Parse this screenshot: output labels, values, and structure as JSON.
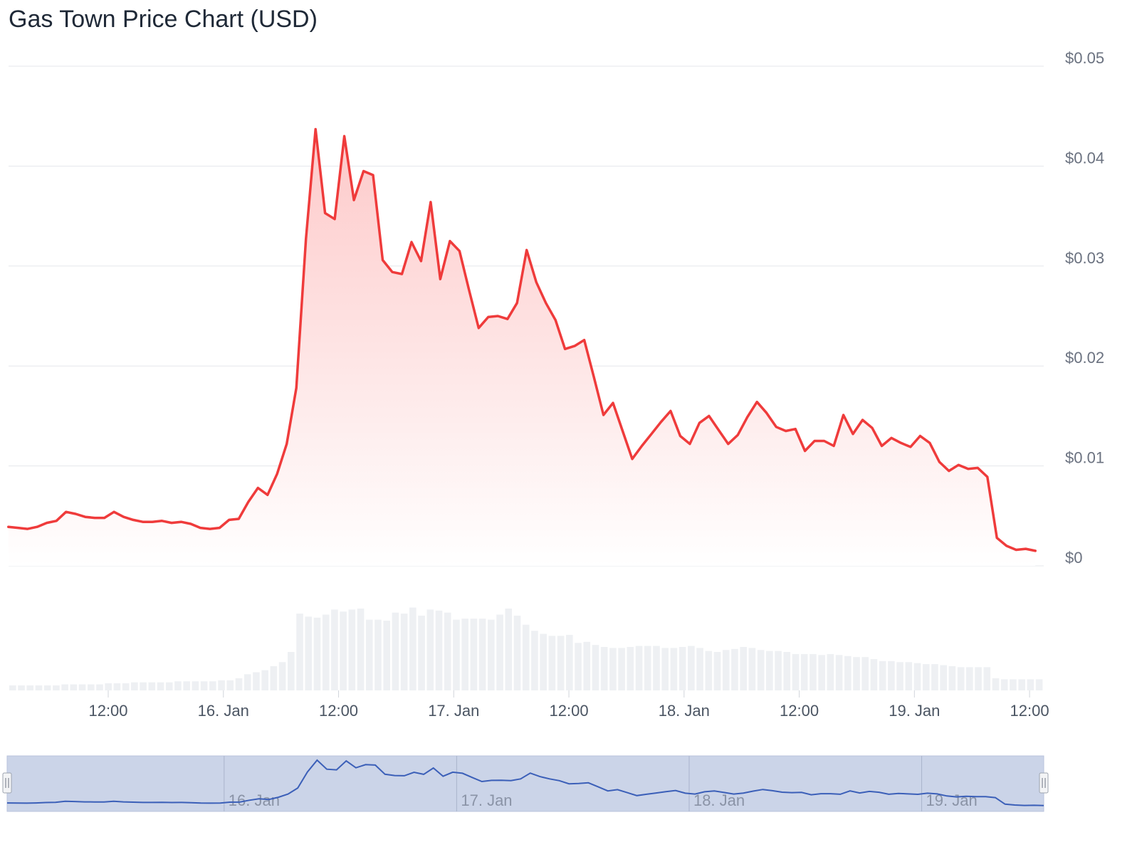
{
  "title": "Gas Town Price Chart (USD)",
  "colors": {
    "price_line": "#ef3b3b",
    "area_top": "#fdc9c9",
    "volume_bar": "#eef0f3",
    "grid": "#e5e7eb",
    "navigator_fill": "#cbd4e8",
    "navigator_line": "#3b5fb8"
  },
  "chart_data": {
    "type": "area",
    "x_unit": "hours since first point (tick 12:00 = 12)",
    "y_ticks": [
      "$0.05",
      "$0.04",
      "$0.03",
      "$0.02",
      "$0.01",
      "$0"
    ],
    "ylim": [
      0,
      0.05
    ],
    "x_ticks": [
      {
        "label": "12:00",
        "x": 12
      },
      {
        "label": "16. Jan",
        "x": 24
      },
      {
        "label": "12:00",
        "x": 36
      },
      {
        "label": "17. Jan",
        "x": 48
      },
      {
        "label": "12:00",
        "x": 60
      },
      {
        "label": "18. Jan",
        "x": 72
      },
      {
        "label": "12:00",
        "x": 84
      },
      {
        "label": "19. Jan",
        "x": 96
      },
      {
        "label": "12:00",
        "x": 108
      }
    ],
    "navigator_labels": [
      {
        "label": "16. Jan",
        "x": 24
      },
      {
        "label": "17. Jan",
        "x": 48
      },
      {
        "label": "18. Jan",
        "x": 72
      },
      {
        "label": "19. Jan",
        "x": 96
      }
    ],
    "price": [
      [
        1.6,
        0.0039
      ],
      [
        2.6,
        0.0038
      ],
      [
        3.6,
        0.0037
      ],
      [
        4.6,
        0.0039
      ],
      [
        5.6,
        0.0043
      ],
      [
        6.6,
        0.0045
      ],
      [
        7.6,
        0.0054
      ],
      [
        8.6,
        0.0052
      ],
      [
        9.6,
        0.0049
      ],
      [
        10.6,
        0.0048
      ],
      [
        11.6,
        0.0048
      ],
      [
        12.6,
        0.0054
      ],
      [
        13.6,
        0.0049
      ],
      [
        14.6,
        0.0046
      ],
      [
        15.6,
        0.0044
      ],
      [
        16.6,
        0.0044
      ],
      [
        17.6,
        0.0045
      ],
      [
        18.6,
        0.0043
      ],
      [
        19.6,
        0.0044
      ],
      [
        20.6,
        0.0042
      ],
      [
        21.6,
        0.0038
      ],
      [
        22.6,
        0.0037
      ],
      [
        23.6,
        0.0038
      ],
      [
        24.6,
        0.0046
      ],
      [
        25.6,
        0.0047
      ],
      [
        26.6,
        0.0064
      ],
      [
        27.6,
        0.0078
      ],
      [
        28.6,
        0.0071
      ],
      [
        29.6,
        0.0092
      ],
      [
        30.6,
        0.0122
      ],
      [
        31.6,
        0.0178
      ],
      [
        32.6,
        0.0327
      ],
      [
        33.6,
        0.0437
      ],
      [
        34.6,
        0.0353
      ],
      [
        35.6,
        0.0347
      ],
      [
        36.6,
        0.043
      ],
      [
        37.6,
        0.0366
      ],
      [
        38.6,
        0.0395
      ],
      [
        39.6,
        0.0391
      ],
      [
        40.6,
        0.0306
      ],
      [
        41.6,
        0.0294
      ],
      [
        42.6,
        0.0292
      ],
      [
        43.6,
        0.0324
      ],
      [
        44.6,
        0.0305
      ],
      [
        45.6,
        0.0364
      ],
      [
        46.6,
        0.0287
      ],
      [
        47.6,
        0.0325
      ],
      [
        48.6,
        0.0315
      ],
      [
        49.6,
        0.0276
      ],
      [
        50.6,
        0.0238
      ],
      [
        51.6,
        0.0249
      ],
      [
        52.6,
        0.025
      ],
      [
        53.6,
        0.0247
      ],
      [
        54.6,
        0.0263
      ],
      [
        55.6,
        0.0316
      ],
      [
        56.6,
        0.0284
      ],
      [
        57.6,
        0.0263
      ],
      [
        58.6,
        0.0246
      ],
      [
        59.6,
        0.0217
      ],
      [
        60.6,
        0.022
      ],
      [
        61.6,
        0.0226
      ],
      [
        62.6,
        0.0189
      ],
      [
        63.6,
        0.0151
      ],
      [
        64.6,
        0.0163
      ],
      [
        65.6,
        0.0135
      ],
      [
        66.6,
        0.0107
      ],
      [
        67.6,
        0.012
      ],
      [
        68.6,
        0.0132
      ],
      [
        69.6,
        0.0144
      ],
      [
        70.6,
        0.0155
      ],
      [
        71.6,
        0.013
      ],
      [
        72.6,
        0.0122
      ],
      [
        73.6,
        0.0143
      ],
      [
        74.6,
        0.015
      ],
      [
        75.6,
        0.0136
      ],
      [
        76.6,
        0.0122
      ],
      [
        77.6,
        0.0131
      ],
      [
        78.6,
        0.0149
      ],
      [
        79.6,
        0.0164
      ],
      [
        80.6,
        0.0153
      ],
      [
        81.6,
        0.0139
      ],
      [
        82.6,
        0.0135
      ],
      [
        83.6,
        0.0137
      ],
      [
        84.6,
        0.0115
      ],
      [
        85.6,
        0.0125
      ],
      [
        86.6,
        0.0125
      ],
      [
        87.6,
        0.012
      ],
      [
        88.6,
        0.0151
      ],
      [
        89.6,
        0.0132
      ],
      [
        90.6,
        0.0146
      ],
      [
        91.6,
        0.0138
      ],
      [
        92.6,
        0.012
      ],
      [
        93.6,
        0.0128
      ],
      [
        94.6,
        0.0123
      ],
      [
        95.6,
        0.0119
      ],
      [
        96.6,
        0.013
      ],
      [
        97.6,
        0.0123
      ],
      [
        98.6,
        0.0104
      ],
      [
        99.6,
        0.0095
      ],
      [
        100.6,
        0.0101
      ],
      [
        101.6,
        0.0097
      ],
      [
        102.6,
        0.0098
      ],
      [
        103.6,
        0.0089
      ],
      [
        104.6,
        0.0028
      ],
      [
        105.6,
        0.002
      ],
      [
        106.6,
        0.0016
      ],
      [
        107.6,
        0.0017
      ],
      [
        108.6,
        0.0015
      ]
    ],
    "volume": [
      0.5,
      0.5,
      0.5,
      0.5,
      0.5,
      0.5,
      0.6,
      0.6,
      0.6,
      0.6,
      0.6,
      0.7,
      0.7,
      0.7,
      0.8,
      0.8,
      0.8,
      0.8,
      0.8,
      0.9,
      0.9,
      0.9,
      0.9,
      0.9,
      1.0,
      1.0,
      1.2,
      1.6,
      1.8,
      2.0,
      2.4,
      2.8,
      3.8,
      7.6,
      7.3,
      7.2,
      7.5,
      8.0,
      7.8,
      8.0,
      8.1,
      7.0,
      7.0,
      6.9,
      7.7,
      7.6,
      8.2,
      7.4,
      8.0,
      7.9,
      7.7,
      7.0,
      7.1,
      7.1,
      7.1,
      7.0,
      7.5,
      8.1,
      7.4,
      6.5,
      5.9,
      5.6,
      5.4,
      5.4,
      5.5,
      4.7,
      4.8,
      4.5,
      4.3,
      4.2,
      4.2,
      4.3,
      4.4,
      4.4,
      4.4,
      4.2,
      4.2,
      4.3,
      4.4,
      4.2,
      3.9,
      3.8,
      4.0,
      4.1,
      4.3,
      4.2,
      4.0,
      3.9,
      3.9,
      3.8,
      3.6,
      3.6,
      3.6,
      3.5,
      3.6,
      3.5,
      3.4,
      3.3,
      3.3,
      3.1,
      2.9,
      2.9,
      2.8,
      2.8,
      2.7,
      2.6,
      2.6,
      2.5,
      2.4,
      2.3,
      2.3,
      2.3,
      2.3,
      1.2,
      1.1,
      1.1,
      1.1,
      1.1,
      1.1
    ]
  }
}
